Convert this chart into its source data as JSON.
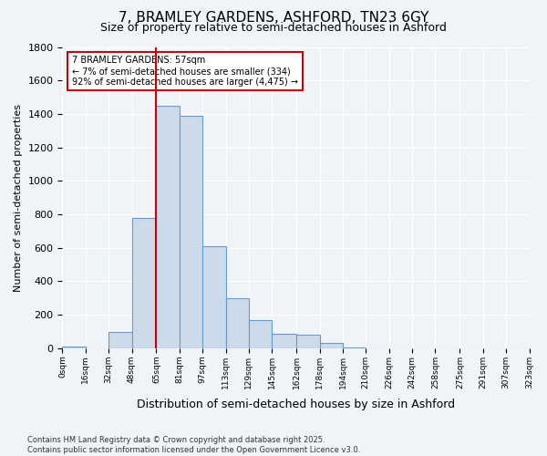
{
  "title_line1": "7, BRAMLEY GARDENS, ASHFORD, TN23 6GY",
  "title_line2": "Size of property relative to semi-detached houses in Ashford",
  "xlabel": "Distribution of semi-detached houses by size in Ashford",
  "ylabel": "Number of semi-detached properties",
  "bin_labels": [
    "0sqm",
    "16sqm",
    "32sqm",
    "48sqm",
    "65sqm",
    "81sqm",
    "97sqm",
    "113sqm",
    "129sqm",
    "145sqm",
    "162sqm",
    "178sqm",
    "194sqm",
    "210sqm",
    "226sqm",
    "242sqm",
    "258sqm",
    "275sqm",
    "291sqm",
    "307sqm",
    "323sqm"
  ],
  "bin_edges": [
    0,
    16,
    32,
    48,
    65,
    81,
    97,
    113,
    129,
    145,
    162,
    178,
    194,
    210,
    226,
    242,
    258,
    275,
    291,
    307,
    323
  ],
  "bar_values": [
    10,
    0,
    100,
    780,
    1450,
    1390,
    610,
    300,
    170,
    85,
    80,
    30,
    5,
    0,
    0,
    0,
    0,
    0,
    0,
    0
  ],
  "bar_color": "#ccdaea",
  "bar_edge_color": "#6699cc",
  "vline_x": 65,
  "vline_color": "#cc0000",
  "annotation_line1": "7 BRAMLEY GARDENS: 57sqm",
  "annotation_line2": "← 7% of semi-detached houses are smaller (334)",
  "annotation_line3": "92% of semi-detached houses are larger (4,475) →",
  "ylim": [
    0,
    1800
  ],
  "yticks": [
    0,
    200,
    400,
    600,
    800,
    1000,
    1200,
    1400,
    1600,
    1800
  ],
  "bg_color": "#f0f4f8",
  "plot_bg_color": "#f0f4f8",
  "footer_text": "Contains HM Land Registry data © Crown copyright and database right 2025.\nContains public sector information licensed under the Open Government Licence v3.0.",
  "title_fontsize": 11,
  "subtitle_fontsize": 9,
  "annotation_fontsize": 7,
  "ylabel_fontsize": 8,
  "xlabel_fontsize": 9,
  "footer_fontsize": 6
}
